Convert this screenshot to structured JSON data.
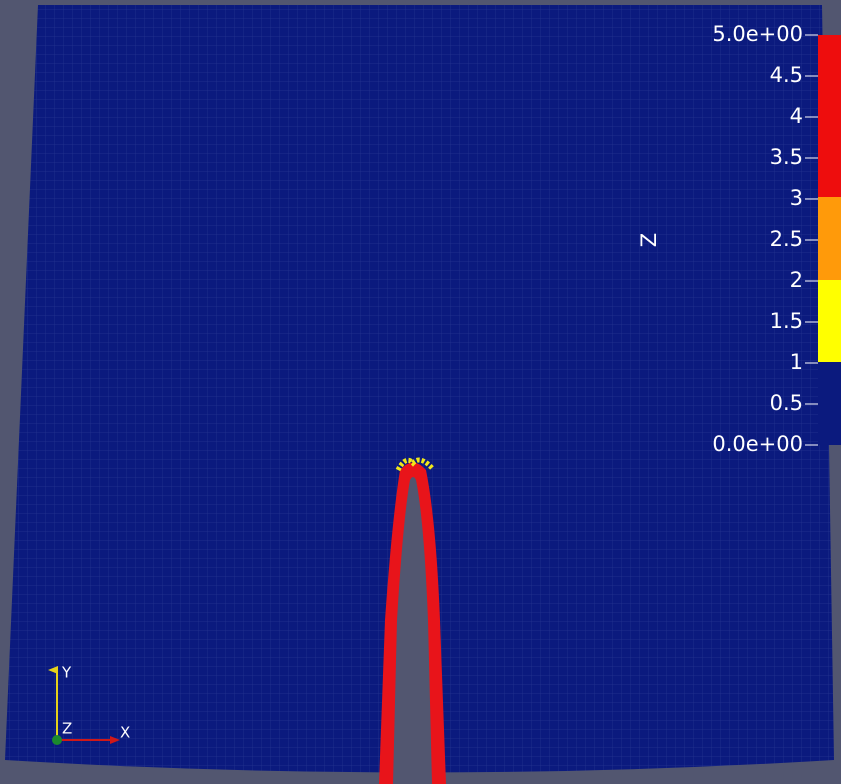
{
  "legend": {
    "title": "Z",
    "ticks": [
      "5.0e+00",
      "4.5",
      "4",
      "3.5",
      "3",
      "2.5",
      "2",
      "1.5",
      "1",
      "0.5",
      "0.0e+00"
    ]
  },
  "axes_triad": {
    "x": "X",
    "y": "Y",
    "z": "Z"
  }
}
